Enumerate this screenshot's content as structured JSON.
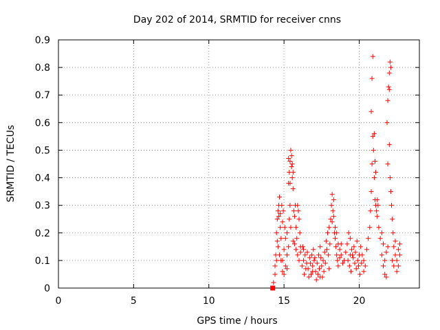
{
  "chart_data": {
    "type": "scatter",
    "title": "Day 202 of 2014, SRMTID for receiver cnns",
    "xlabel": "GPS time / hours",
    "ylabel": "SRMTID / TECUs",
    "xlim": [
      0,
      24
    ],
    "ylim": [
      0,
      0.9
    ],
    "xticks": [
      0,
      5,
      10,
      15,
      20
    ],
    "yticks": [
      0,
      0.1,
      0.2,
      0.3,
      0.4,
      0.5,
      0.6,
      0.7,
      0.8,
      0.9
    ],
    "xtick_labels": [
      "0",
      "5",
      "10",
      "15",
      "20"
    ],
    "ytick_labels": [
      "0",
      "0.1",
      "0.2",
      "0.3",
      "0.4",
      "0.5",
      "0.6",
      "0.7",
      "0.8",
      "0.9"
    ],
    "grid": true,
    "marker": "plus",
    "color": "#ff0000",
    "marker_square": {
      "x": 14.25,
      "y": 0.0
    },
    "series": [
      {
        "points": [
          [
            14.3,
            0.02
          ],
          [
            14.4,
            0.08
          ],
          [
            14.45,
            0.12
          ],
          [
            14.5,
            0.2
          ],
          [
            14.55,
            0.25
          ],
          [
            14.6,
            0.28
          ],
          [
            14.65,
            0.3
          ],
          [
            14.7,
            0.33
          ],
          [
            14.75,
            0.22
          ],
          [
            14.8,
            0.18
          ],
          [
            14.6,
            0.15
          ],
          [
            14.7,
            0.12
          ],
          [
            14.8,
            0.1
          ],
          [
            14.9,
            0.06
          ],
          [
            15.0,
            0.05
          ],
          [
            15.1,
            0.08
          ],
          [
            15.2,
            0.12
          ],
          [
            15.3,
            0.15
          ],
          [
            14.5,
            0.1
          ],
          [
            14.9,
            0.24
          ],
          [
            14.95,
            0.28
          ],
          [
            15.05,
            0.22
          ],
          [
            15.1,
            0.18
          ],
          [
            15.2,
            0.2
          ],
          [
            14.85,
            0.3
          ],
          [
            14.75,
            0.27
          ],
          [
            14.55,
            0.17
          ],
          [
            14.65,
            0.26
          ],
          [
            15.0,
            0.14
          ],
          [
            14.4,
            0.05
          ],
          [
            15.3,
            0.38
          ],
          [
            15.35,
            0.42
          ],
          [
            15.4,
            0.46
          ],
          [
            15.45,
            0.5
          ],
          [
            15.5,
            0.44
          ],
          [
            15.55,
            0.4
          ],
          [
            15.6,
            0.36
          ],
          [
            15.4,
            0.3
          ],
          [
            15.35,
            0.25
          ],
          [
            15.45,
            0.22
          ],
          [
            15.3,
            0.47
          ],
          [
            15.5,
            0.48
          ],
          [
            15.55,
            0.45
          ],
          [
            15.6,
            0.42
          ],
          [
            15.4,
            0.38
          ],
          [
            15.65,
            0.28
          ],
          [
            15.7,
            0.26
          ],
          [
            15.75,
            0.3
          ],
          [
            15.8,
            0.22
          ],
          [
            15.85,
            0.18
          ],
          [
            15.9,
            0.3
          ],
          [
            15.95,
            0.28
          ],
          [
            16.0,
            0.25
          ],
          [
            16.05,
            0.2
          ],
          [
            16.1,
            0.15
          ],
          [
            15.7,
            0.16
          ],
          [
            15.8,
            0.14
          ],
          [
            15.9,
            0.12
          ],
          [
            16.0,
            0.1
          ],
          [
            16.1,
            0.13
          ],
          [
            16.2,
            0.08
          ],
          [
            16.3,
            0.1
          ],
          [
            16.4,
            0.12
          ],
          [
            16.5,
            0.09
          ],
          [
            16.6,
            0.07
          ],
          [
            16.7,
            0.11
          ],
          [
            16.8,
            0.05
          ],
          [
            16.9,
            0.08
          ],
          [
            17.0,
            0.1
          ],
          [
            17.1,
            0.06
          ],
          [
            16.25,
            0.15
          ],
          [
            16.35,
            0.05
          ],
          [
            16.45,
            0.07
          ],
          [
            16.55,
            0.13
          ],
          [
            16.65,
            0.04
          ],
          [
            16.75,
            0.09
          ],
          [
            16.85,
            0.12
          ],
          [
            16.95,
            0.14
          ],
          [
            17.05,
            0.11
          ],
          [
            17.15,
            0.03
          ],
          [
            17.2,
            0.09
          ],
          [
            17.3,
            0.12
          ],
          [
            17.4,
            0.15
          ],
          [
            17.5,
            0.08
          ],
          [
            17.6,
            0.1
          ],
          [
            17.7,
            0.13
          ],
          [
            17.8,
            0.17
          ],
          [
            17.9,
            0.2
          ],
          [
            18.0,
            0.22
          ],
          [
            18.1,
            0.25
          ],
          [
            17.25,
            0.05
          ],
          [
            17.35,
            0.07
          ],
          [
            17.45,
            0.11
          ],
          [
            17.55,
            0.04
          ],
          [
            17.65,
            0.06
          ],
          [
            17.75,
            0.09
          ],
          [
            17.85,
            0.14
          ],
          [
            17.95,
            0.12
          ],
          [
            18.05,
            0.16
          ],
          [
            18.15,
            0.3
          ],
          [
            18.2,
            0.34
          ],
          [
            18.25,
            0.28
          ],
          [
            18.3,
            0.32
          ],
          [
            18.35,
            0.2
          ],
          [
            18.4,
            0.18
          ],
          [
            18.45,
            0.15
          ],
          [
            18.5,
            0.12
          ],
          [
            18.55,
            0.1
          ],
          [
            18.6,
            0.08
          ],
          [
            18.7,
            0.11
          ],
          [
            18.2,
            0.24
          ],
          [
            18.3,
            0.26
          ],
          [
            18.4,
            0.22
          ],
          [
            18.5,
            0.2
          ],
          [
            18.6,
            0.16
          ],
          [
            18.7,
            0.14
          ],
          [
            18.8,
            0.12
          ],
          [
            18.9,
            0.09
          ],
          [
            19.0,
            0.1
          ],
          [
            19.1,
            0.13
          ],
          [
            19.2,
            0.16
          ],
          [
            19.3,
            0.2
          ],
          [
            19.4,
            0.18
          ],
          [
            19.5,
            0.14
          ],
          [
            19.6,
            0.11
          ],
          [
            19.7,
            0.09
          ],
          [
            19.8,
            0.07
          ],
          [
            19.9,
            0.1
          ],
          [
            20.0,
            0.12
          ],
          [
            20.1,
            0.15
          ],
          [
            19.25,
            0.1
          ],
          [
            19.35,
            0.08
          ],
          [
            19.45,
            0.06
          ],
          [
            19.55,
            0.12
          ],
          [
            19.65,
            0.15
          ],
          [
            19.75,
            0.13
          ],
          [
            19.85,
            0.17
          ],
          [
            19.95,
            0.08
          ],
          [
            20.05,
            0.05
          ],
          [
            20.15,
            0.09
          ],
          [
            20.2,
            0.12
          ],
          [
            20.3,
            0.1
          ],
          [
            20.4,
            0.08
          ],
          [
            20.5,
            0.14
          ],
          [
            20.6,
            0.18
          ],
          [
            20.7,
            0.22
          ],
          [
            20.75,
            0.28
          ],
          [
            20.8,
            0.35
          ],
          [
            20.85,
            0.45
          ],
          [
            20.9,
            0.55
          ],
          [
            20.8,
            0.64
          ],
          [
            20.85,
            0.76
          ],
          [
            20.9,
            0.84
          ],
          [
            20.95,
            0.5
          ],
          [
            21.0,
            0.4
          ],
          [
            21.05,
            0.32
          ],
          [
            21.1,
            0.3
          ],
          [
            21.15,
            0.28
          ],
          [
            21.2,
            0.32
          ],
          [
            21.25,
            0.3
          ],
          [
            21.0,
            0.56
          ],
          [
            21.05,
            0.46
          ],
          [
            21.1,
            0.42
          ],
          [
            21.2,
            0.26
          ],
          [
            21.3,
            0.22
          ],
          [
            21.4,
            0.18
          ],
          [
            21.5,
            0.12
          ],
          [
            21.6,
            0.08
          ],
          [
            21.7,
            0.05
          ],
          [
            21.8,
            0.04
          ],
          [
            21.85,
            0.6
          ],
          [
            21.9,
            0.68
          ],
          [
            21.95,
            0.73
          ],
          [
            22.0,
            0.78
          ],
          [
            22.05,
            0.82
          ],
          [
            22.1,
            0.8
          ],
          [
            22.0,
            0.72
          ],
          [
            21.9,
            0.45
          ],
          [
            22.0,
            0.52
          ],
          [
            22.05,
            0.4
          ],
          [
            22.1,
            0.35
          ],
          [
            22.15,
            0.3
          ],
          [
            22.2,
            0.25
          ],
          [
            22.25,
            0.2
          ],
          [
            22.3,
            0.15
          ],
          [
            22.4,
            0.12
          ],
          [
            22.5,
            0.1
          ],
          [
            22.6,
            0.14
          ],
          [
            22.7,
            0.12
          ],
          [
            22.3,
            0.08
          ],
          [
            21.5,
            0.2
          ],
          [
            21.6,
            0.16
          ],
          [
            21.7,
            0.1
          ],
          [
            21.8,
            0.13
          ],
          [
            21.9,
            0.15
          ],
          [
            22.2,
            0.1
          ],
          [
            22.4,
            0.17
          ],
          [
            22.5,
            0.06
          ],
          [
            22.6,
            0.08
          ],
          [
            22.7,
            0.16
          ],
          [
            14.9,
            0.1
          ],
          [
            15.2,
            0.07
          ],
          [
            15.6,
            0.17
          ],
          [
            16.3,
            0.14
          ],
          [
            16.9,
            0.06
          ],
          [
            17.4,
            0.04
          ],
          [
            18.0,
            0.07
          ],
          [
            18.8,
            0.16
          ],
          [
            19.4,
            0.12
          ],
          [
            20.3,
            0.06
          ]
        ]
      }
    ]
  }
}
